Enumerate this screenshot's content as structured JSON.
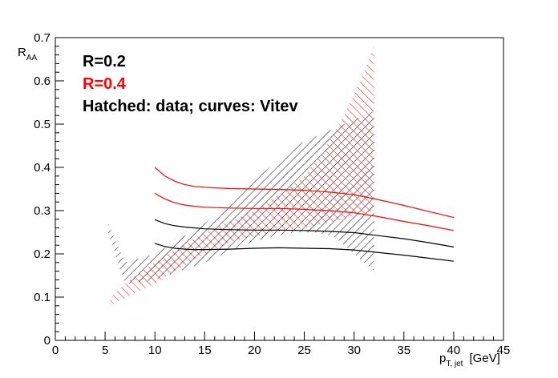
{
  "chart_data": {
    "type": "line",
    "title": "",
    "xlabel": {
      "main": "p",
      "sub": "T, jet",
      "unit": "[GeV]"
    },
    "ylabel": {
      "main": "R",
      "sub": "AA"
    },
    "xlim": [
      0,
      45
    ],
    "ylim": [
      0,
      0.7
    ],
    "xticks": [
      0,
      5,
      10,
      15,
      20,
      25,
      30,
      35,
      40,
      45
    ],
    "xtick_labels": [
      "0",
      "5",
      "10",
      "15",
      "20",
      "25",
      "30",
      "35",
      "40",
      "45"
    ],
    "yticks": [
      0,
      0.1,
      0.2,
      0.3,
      0.4,
      0.5,
      0.6,
      0.7
    ],
    "ytick_labels": [
      "0",
      "0.1",
      "0.2",
      "0.3",
      "0.4",
      "0.5",
      "0.6",
      "0.7"
    ],
    "grid": false,
    "legend": [
      {
        "text": "R=0.2",
        "color": "#000000"
      },
      {
        "text": "R=0.4",
        "color": "#ff0000"
      },
      {
        "text": "Hatched: data; curves: Vitev",
        "color": "#000000"
      }
    ],
    "bands": [
      {
        "name": "R=0.2 data",
        "color": "#000000",
        "x": [
          5.3,
          7,
          10,
          15,
          20,
          22,
          24,
          26,
          28,
          30,
          31,
          32
        ],
        "upper": [
          0.27,
          0.18,
          0.2,
          0.27,
          0.37,
          0.41,
          0.45,
          0.47,
          0.49,
          0.51,
          0.52,
          0.53
        ],
        "lower": [
          0.25,
          0.13,
          0.14,
          0.18,
          0.23,
          0.24,
          0.25,
          0.25,
          0.24,
          0.2,
          0.18,
          0.16
        ]
      },
      {
        "name": "R=0.4 data",
        "color": "#ff0000",
        "x": [
          5.5,
          8,
          10,
          12,
          15,
          18,
          20,
          22,
          25,
          27,
          29,
          30,
          31,
          32
        ],
        "upper": [
          0.1,
          0.15,
          0.18,
          0.21,
          0.25,
          0.28,
          0.3,
          0.33,
          0.38,
          0.44,
          0.52,
          0.57,
          0.62,
          0.68
        ],
        "lower": [
          0.08,
          0.11,
          0.13,
          0.16,
          0.2,
          0.23,
          0.24,
          0.25,
          0.26,
          0.27,
          0.28,
          0.29,
          0.29,
          0.3
        ]
      }
    ],
    "series": [
      {
        "color": "#ff0000",
        "x": [
          10,
          11,
          12,
          13,
          14,
          15,
          17.5,
          20,
          22.5,
          25,
          27.5,
          30,
          32.5,
          35,
          37.5,
          40
        ],
        "y": [
          0.4,
          0.38,
          0.368,
          0.36,
          0.356,
          0.354,
          0.351,
          0.35,
          0.349,
          0.347,
          0.343,
          0.337,
          0.325,
          0.312,
          0.298,
          0.284
        ]
      },
      {
        "color": "#ff0000",
        "x": [
          10,
          11,
          12,
          13,
          14,
          15,
          17.5,
          20,
          22.5,
          25,
          27.5,
          30,
          32.5,
          35,
          37.5,
          40
        ],
        "y": [
          0.34,
          0.327,
          0.318,
          0.313,
          0.31,
          0.308,
          0.306,
          0.305,
          0.305,
          0.303,
          0.3,
          0.295,
          0.286,
          0.275,
          0.265,
          0.254
        ]
      },
      {
        "color": "#000000",
        "x": [
          10,
          11,
          12,
          13,
          14,
          15,
          17.5,
          20,
          22.5,
          25,
          27.5,
          30,
          32.5,
          35,
          37.5,
          40
        ],
        "y": [
          0.279,
          0.27,
          0.265,
          0.262,
          0.26,
          0.258,
          0.256,
          0.255,
          0.255,
          0.254,
          0.252,
          0.249,
          0.242,
          0.235,
          0.226,
          0.216
        ]
      },
      {
        "color": "#000000",
        "x": [
          10,
          11,
          12,
          13,
          14,
          15,
          17.5,
          20,
          22.5,
          25,
          27.5,
          30,
          32.5,
          35,
          37.5,
          40
        ],
        "y": [
          0.224,
          0.217,
          0.213,
          0.211,
          0.21,
          0.21,
          0.211,
          0.213,
          0.214,
          0.213,
          0.212,
          0.209,
          0.203,
          0.197,
          0.19,
          0.183
        ]
      }
    ]
  }
}
